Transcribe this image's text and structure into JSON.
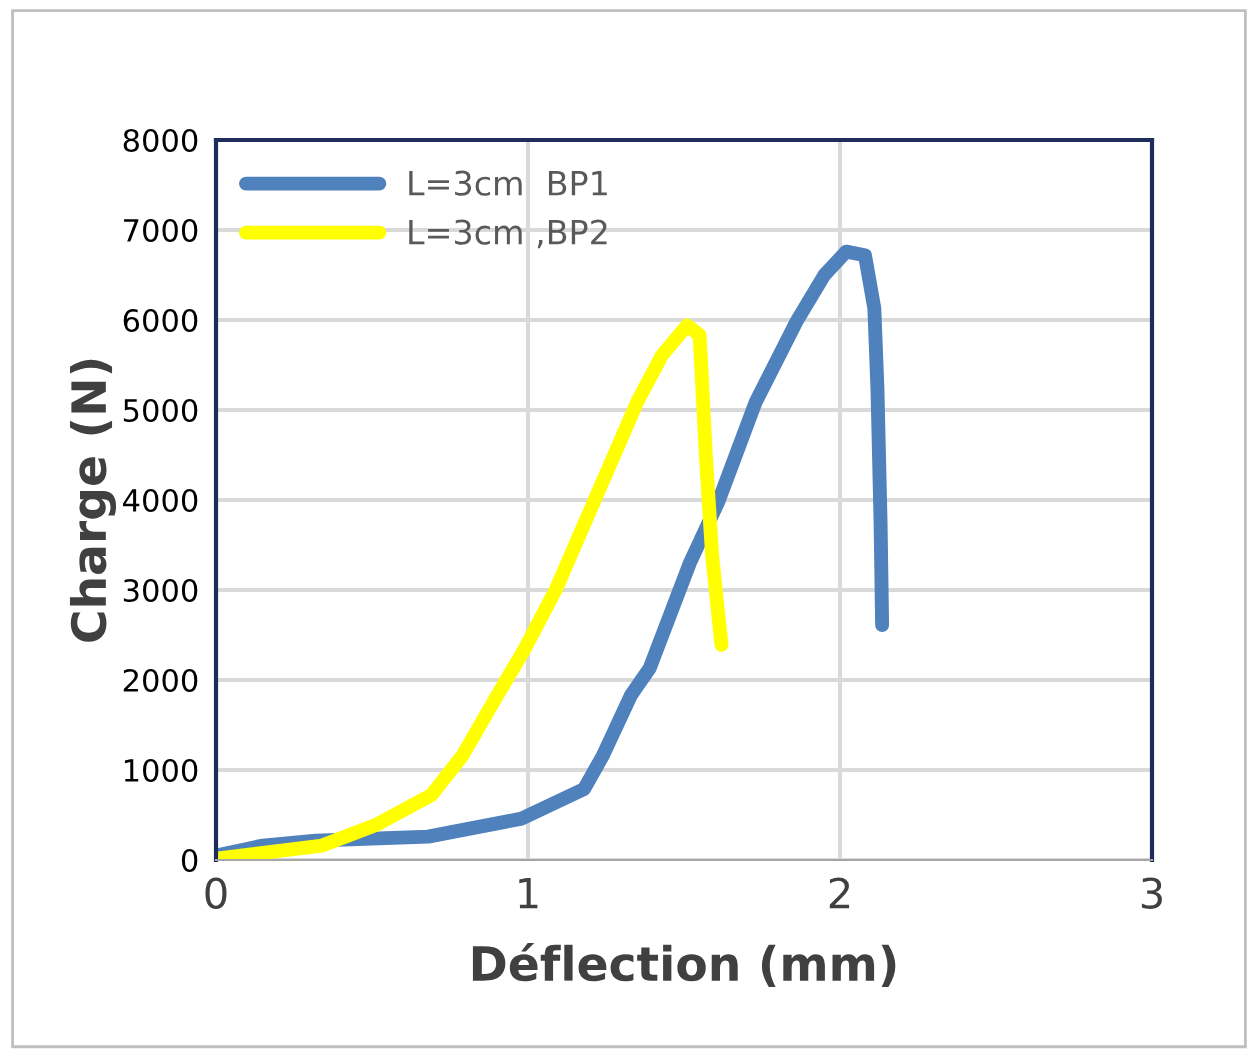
{
  "chart_data": {
    "type": "line",
    "xlabel": "Déflection (mm)",
    "ylabel": "Charge (N)",
    "xlim": [
      0,
      3
    ],
    "xticks": [
      0,
      1,
      2,
      3
    ],
    "ylim": [
      0,
      8000
    ],
    "yticks": [
      0,
      1000,
      2000,
      3000,
      4000,
      5000,
      6000,
      7000,
      8000
    ],
    "grid": true,
    "legend": "top left",
    "marker": "none",
    "line_style": "solid",
    "series": [
      {
        "name": "L=3cm  BP1",
        "color": "#4f81bd",
        "x": [
          0,
          0.15,
          0.32,
          0.68,
          0.98,
          1.18,
          1.24,
          1.33,
          1.39,
          1.52,
          1.61,
          1.73,
          1.86,
          1.95,
          2.02,
          2.08,
          2.11,
          2.12,
          2.13,
          2.135
        ],
        "values": [
          50,
          160,
          215,
          260,
          460,
          790,
          1160,
          1830,
          2130,
          3310,
          3980,
          5090,
          5980,
          6500,
          6760,
          6720,
          6130,
          5240,
          3760,
          2610
        ]
      },
      {
        "name": "L=3cm ,BP2",
        "color": "#ffff00",
        "x": [
          0,
          0.34,
          0.51,
          0.69,
          0.79,
          0.89,
          0.99,
          1.09,
          1.22,
          1.35,
          1.43,
          1.51,
          1.55,
          1.57,
          1.59,
          1.62
        ],
        "values": [
          15,
          160,
          385,
          720,
          1160,
          1760,
          2350,
          3010,
          4050,
          5090,
          5610,
          5940,
          5830,
          4500,
          3390,
          2390
        ]
      }
    ]
  }
}
